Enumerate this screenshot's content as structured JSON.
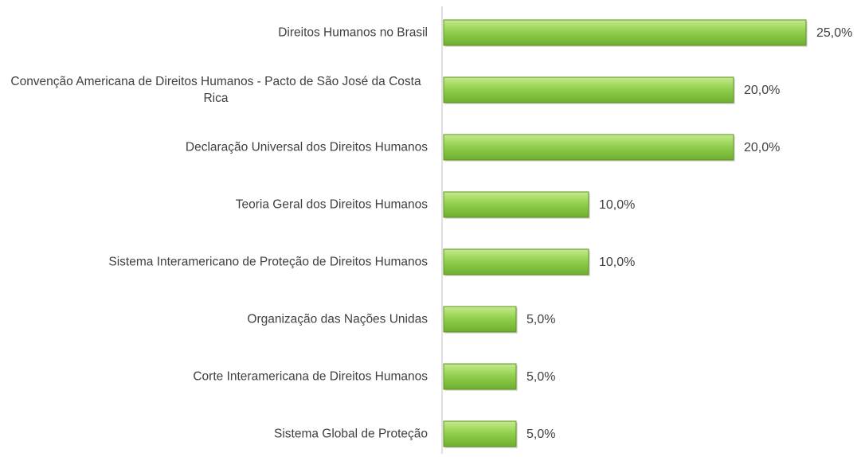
{
  "chart_data": {
    "type": "barh",
    "categories": [
      "Direitos Humanos no Brasil",
      "Convenção Americana de Direitos Humanos - Pacto de São José da Costa Rica",
      "Declaração Universal dos Direitos Humanos",
      "Teoria Geral dos Direitos Humanos",
      "Sistema Interamericano de Proteção de Direitos Humanos",
      "Organização das Nações Unidas",
      "Corte Interamericana de Direitos Humanos",
      "Sistema Global de Proteção"
    ],
    "values": [
      25,
      20,
      20,
      10,
      10,
      5,
      5,
      5
    ],
    "value_labels": [
      "25,0%",
      "20,0%",
      "20,0%",
      "10,0%",
      "10,0%",
      "5,0%",
      "5,0%",
      "5,0%"
    ],
    "color": "#92d050"
  }
}
